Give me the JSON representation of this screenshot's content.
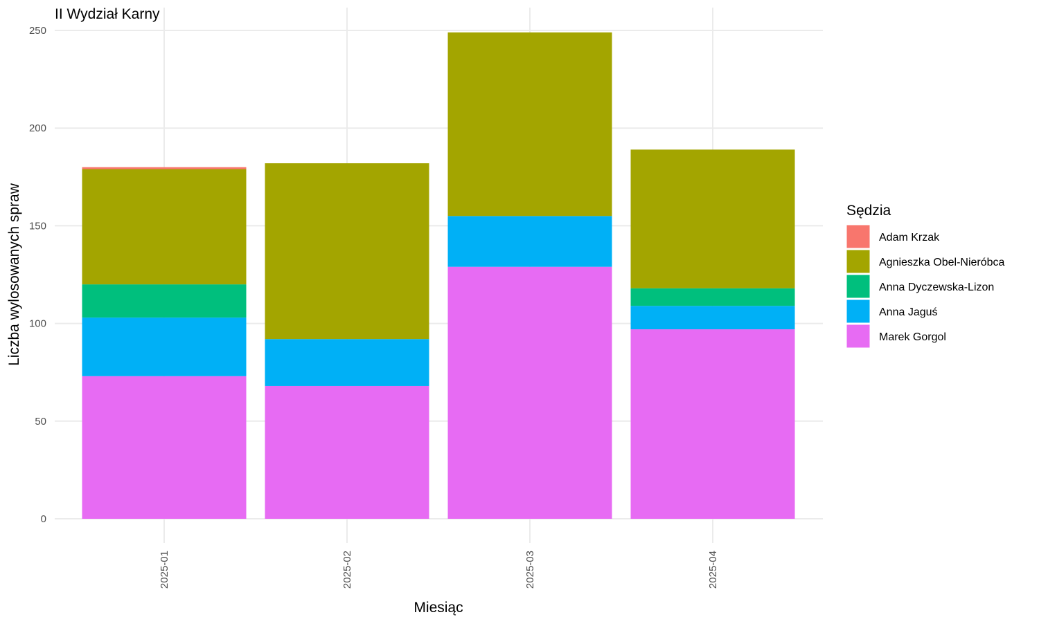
{
  "chart_data": {
    "type": "bar",
    "stacked": true,
    "title": "II Wydział Karny",
    "xlabel": "Miesiąc",
    "ylabel": "Liczba wylosowanych spraw",
    "categories": [
      "2025-01",
      "2025-02",
      "2025-03",
      "2025-04"
    ],
    "ylim": [
      0,
      262
    ],
    "yticks": [
      0,
      50,
      100,
      150,
      200,
      250
    ],
    "grid": true,
    "legend": {
      "title": "Sędzia",
      "position": "right"
    },
    "series": [
      {
        "name": "Marek Gorgol",
        "color": "#E76BF3",
        "values": [
          73,
          68,
          129,
          97
        ]
      },
      {
        "name": "Anna Jaguś",
        "color": "#00B0F6",
        "values": [
          30,
          24,
          26,
          12
        ]
      },
      {
        "name": "Anna Dyczewska-Lizon",
        "color": "#00BF7D",
        "values": [
          17,
          0,
          0,
          9
        ]
      },
      {
        "name": "Agnieszka Obel-Nieróbca",
        "color": "#A3A500",
        "values": [
          59,
          90,
          94,
          71
        ]
      },
      {
        "name": "Adam Krzak",
        "color": "#F8766D",
        "values": [
          1,
          0,
          0,
          0
        ]
      }
    ],
    "legend_order": [
      "Adam Krzak",
      "Agnieszka Obel-Nieróbca",
      "Anna Dyczewska-Lizon",
      "Anna Jaguś",
      "Marek Gorgol"
    ]
  }
}
